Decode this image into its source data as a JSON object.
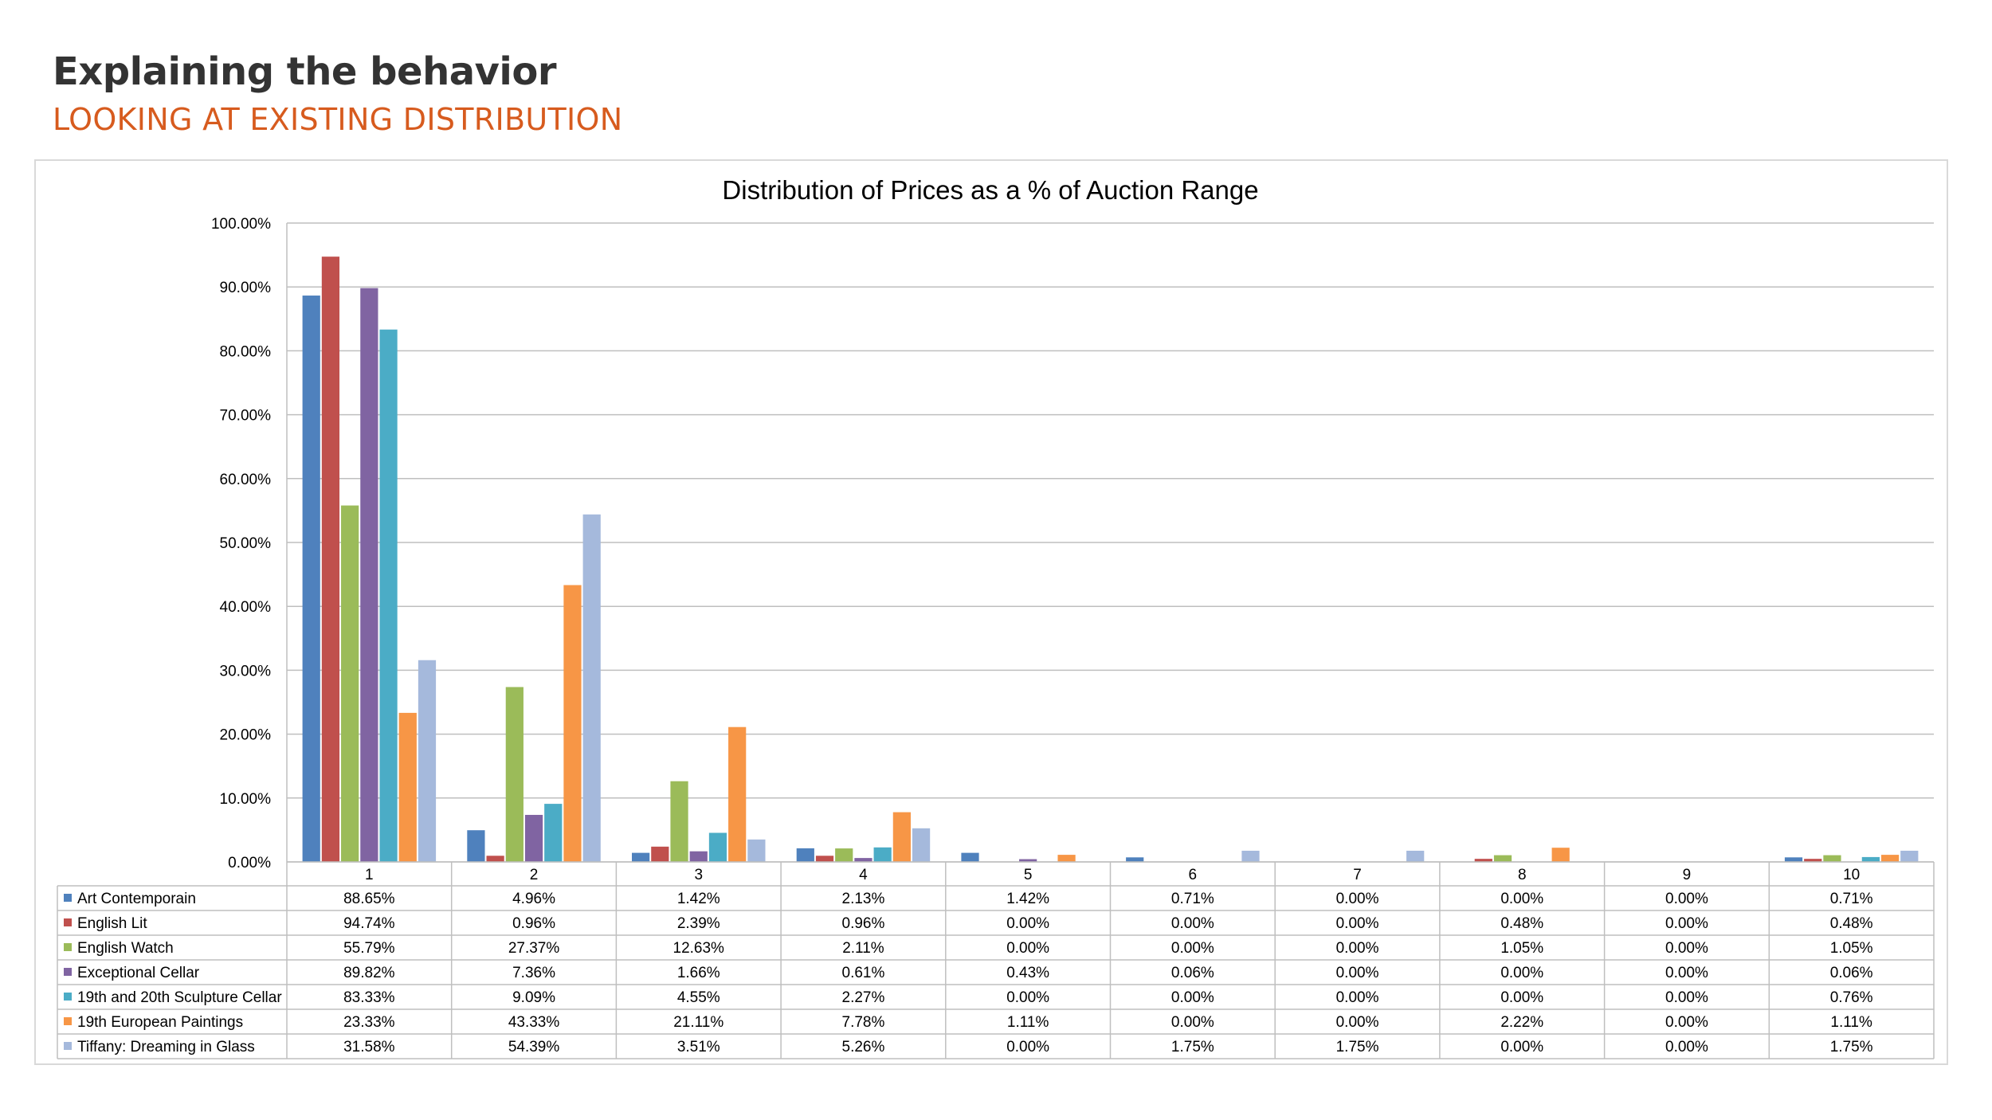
{
  "header": {
    "title": "Explaining the behavior",
    "subtitle": "LOOKING AT EXISTING DISTRIBUTION"
  },
  "chart_data": {
    "type": "bar",
    "title": "Distribution of Prices as a % of Auction Range",
    "xlabel": "",
    "ylabel": "",
    "ylim": [
      0,
      100
    ],
    "y_tick_labels": [
      "0.00%",
      "10.00%",
      "20.00%",
      "30.00%",
      "40.00%",
      "50.00%",
      "60.00%",
      "70.00%",
      "80.00%",
      "90.00%",
      "100.00%"
    ],
    "y_ticks": [
      0,
      10,
      20,
      30,
      40,
      50,
      60,
      70,
      80,
      90,
      100
    ],
    "grid": true,
    "legend": "data-table-left",
    "categories": [
      "1",
      "2",
      "3",
      "4",
      "5",
      "6",
      "7",
      "8",
      "9",
      "10"
    ],
    "series": [
      {
        "name": "Art Contemporain",
        "color": "#4f81bd",
        "values": [
          88.65,
          4.96,
          1.42,
          2.13,
          1.42,
          0.71,
          0.0,
          0.0,
          0.0,
          0.71
        ],
        "labels": [
          "88.65%",
          "4.96%",
          "1.42%",
          "2.13%",
          "1.42%",
          "0.71%",
          "0.00%",
          "0.00%",
          "0.00%",
          "0.71%"
        ]
      },
      {
        "name": "English Lit",
        "color": "#c0504d",
        "values": [
          94.74,
          0.96,
          2.39,
          0.96,
          0.0,
          0.0,
          0.0,
          0.48,
          0.0,
          0.48
        ],
        "labels": [
          "94.74%",
          "0.96%",
          "2.39%",
          "0.96%",
          "0.00%",
          "0.00%",
          "0.00%",
          "0.48%",
          "0.00%",
          "0.48%"
        ]
      },
      {
        "name": "English Watch",
        "color": "#9bbb59",
        "values": [
          55.79,
          27.37,
          12.63,
          2.11,
          0.0,
          0.0,
          0.0,
          1.05,
          0.0,
          1.05
        ],
        "labels": [
          "55.79%",
          "27.37%",
          "12.63%",
          "2.11%",
          "0.00%",
          "0.00%",
          "0.00%",
          "1.05%",
          "0.00%",
          "1.05%"
        ]
      },
      {
        "name": "Exceptional Cellar",
        "color": "#8064a2",
        "values": [
          89.82,
          7.36,
          1.66,
          0.61,
          0.43,
          0.06,
          0.0,
          0.0,
          0.0,
          0.06
        ],
        "labels": [
          "89.82%",
          "7.36%",
          "1.66%",
          "0.61%",
          "0.43%",
          "0.06%",
          "0.00%",
          "0.00%",
          "0.00%",
          "0.06%"
        ]
      },
      {
        "name": "19th and 20th Sculpture Cellar",
        "color": "#4bacc6",
        "values": [
          83.33,
          9.09,
          4.55,
          2.27,
          0.0,
          0.0,
          0.0,
          0.0,
          0.0,
          0.76
        ],
        "labels": [
          "83.33%",
          "9.09%",
          "4.55%",
          "2.27%",
          "0.00%",
          "0.00%",
          "0.00%",
          "0.00%",
          "0.00%",
          "0.76%"
        ]
      },
      {
        "name": "19th European Paintings",
        "color": "#f79646",
        "values": [
          23.33,
          43.33,
          21.11,
          7.78,
          1.11,
          0.0,
          0.0,
          2.22,
          0.0,
          1.11
        ],
        "labels": [
          "23.33%",
          "43.33%",
          "21.11%",
          "7.78%",
          "1.11%",
          "0.00%",
          "0.00%",
          "2.22%",
          "0.00%",
          "1.11%"
        ]
      },
      {
        "name": "Tiffany: Dreaming in Glass",
        "color": "#a5b9dc",
        "values": [
          31.58,
          54.39,
          3.51,
          5.26,
          0.0,
          1.75,
          1.75,
          0.0,
          0.0,
          1.75
        ],
        "labels": [
          "31.58%",
          "54.39%",
          "3.51%",
          "5.26%",
          "0.00%",
          "1.75%",
          "1.75%",
          "0.00%",
          "0.00%",
          "1.75%"
        ]
      }
    ]
  }
}
